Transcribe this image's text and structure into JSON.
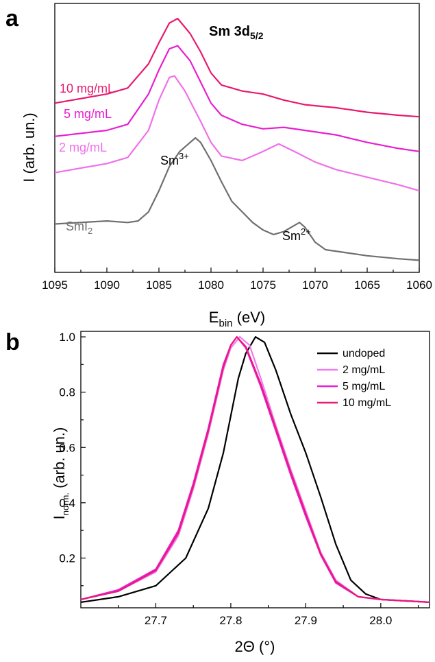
{
  "chart_data": [
    {
      "panel": "a",
      "type": "line",
      "title": "Sm 3d",
      "title_sub": "5/2",
      "xlabel_main": "E",
      "xlabel_sub": "bin",
      "xlabel_unit": " (eV)",
      "ylabel": "I (arb. un.)",
      "xlim": [
        1095,
        1060
      ],
      "x_reversed": true,
      "xticks": [
        "1095",
        "1090",
        "1085",
        "1080",
        "1075",
        "1070",
        "1065",
        "1060"
      ],
      "yticks_labeled": false,
      "series": [
        {
          "name": "10 mg/mL",
          "color": "#e8196e",
          "x": [
            1095,
            1090,
            1088,
            1086,
            1085,
            1084,
            1083.2,
            1082,
            1081,
            1080,
            1079,
            1077,
            1075,
            1073,
            1071,
            1068,
            1065,
            1062,
            1060
          ],
          "y": [
            6.9,
            7.2,
            7.4,
            8.2,
            8.9,
            9.55,
            9.7,
            9.2,
            8.6,
            7.9,
            7.5,
            7.3,
            7.2,
            7.0,
            6.85,
            6.75,
            6.6,
            6.5,
            6.45
          ]
        },
        {
          "name": "5 mg/mL",
          "color": "#e81ed0",
          "x": [
            1095,
            1090,
            1088,
            1086,
            1085,
            1084,
            1083.2,
            1082,
            1081,
            1080,
            1079,
            1077,
            1075,
            1073,
            1071,
            1068,
            1065,
            1062,
            1060
          ],
          "y": [
            5.8,
            6.0,
            6.2,
            7.2,
            8.0,
            8.7,
            8.8,
            8.3,
            7.6,
            6.9,
            6.5,
            6.2,
            6.05,
            6.1,
            6.0,
            5.85,
            5.6,
            5.4,
            5.3
          ]
        },
        {
          "name": "2 mg/mL",
          "color": "#f070e8",
          "x": [
            1095,
            1090,
            1088,
            1086,
            1085,
            1084,
            1083.5,
            1082.5,
            1081,
            1080,
            1079,
            1077,
            1075,
            1073.5,
            1072,
            1070,
            1068,
            1065,
            1062,
            1060
          ],
          "y": [
            4.6,
            4.9,
            5.1,
            6.0,
            7.0,
            7.75,
            7.8,
            7.3,
            6.3,
            5.6,
            5.15,
            5.0,
            5.3,
            5.55,
            5.3,
            4.95,
            4.7,
            4.45,
            4.2,
            4.0
          ]
        },
        {
          "name": "SmI2",
          "color": "#6f6f6f",
          "x": [
            1095,
            1090,
            1088,
            1087,
            1086,
            1085,
            1084,
            1083,
            1082,
            1081.5,
            1081,
            1080,
            1079,
            1078,
            1077,
            1076,
            1075,
            1074,
            1073,
            1072,
            1071.5,
            1071,
            1070,
            1069,
            1067,
            1065,
            1062,
            1060
          ],
          "y": [
            2.9,
            3.0,
            2.95,
            3.0,
            3.3,
            4.0,
            4.8,
            5.3,
            5.6,
            5.75,
            5.6,
            5.0,
            4.3,
            3.65,
            3.3,
            2.95,
            2.7,
            2.55,
            2.65,
            2.85,
            2.95,
            2.8,
            2.3,
            2.05,
            1.95,
            1.85,
            1.75,
            1.7
          ]
        }
      ],
      "annotations": [
        {
          "main": "Sm",
          "sup": "3+"
        },
        {
          "main": "Sm",
          "sup": "2+"
        }
      ],
      "series_labels": [
        {
          "main": "10 mg/mL"
        },
        {
          "main": "5 mg/mL"
        },
        {
          "main": "2 mg/mL"
        },
        {
          "main": "SmI",
          "sub": "2"
        }
      ]
    },
    {
      "panel": "b",
      "type": "line",
      "xlabel": "2Θ (°)",
      "ylabel_main": "I",
      "ylabel_sub": "norm.",
      "ylabel_unit": " (arb. un.)",
      "xlim": [
        27.6,
        28.065
      ],
      "ylim": [
        0.02,
        1.02
      ],
      "xticks": [
        "27.7",
        "27.8",
        "27.9",
        "28.0"
      ],
      "yticks": [
        "0.2",
        "0.4",
        "0.6",
        "0.8",
        "1.0"
      ],
      "legend_position": "top-right",
      "series": [
        {
          "name": "undoped",
          "color": "#000000",
          "x": [
            27.6,
            27.65,
            27.7,
            27.74,
            27.77,
            27.79,
            27.81,
            27.82,
            27.833,
            27.845,
            27.86,
            27.88,
            27.9,
            27.92,
            27.94,
            27.96,
            27.98,
            28.0,
            28.065
          ],
          "y": [
            0.04,
            0.06,
            0.1,
            0.2,
            0.38,
            0.58,
            0.85,
            0.94,
            1.0,
            0.98,
            0.88,
            0.72,
            0.58,
            0.42,
            0.25,
            0.12,
            0.07,
            0.05,
            0.04
          ]
        },
        {
          "name": "2 mg/mL",
          "color": "#f07af0",
          "x": [
            27.6,
            27.65,
            27.7,
            27.73,
            27.75,
            27.77,
            27.79,
            27.8,
            27.812,
            27.825,
            27.84,
            27.86,
            27.88,
            27.9,
            27.92,
            27.94,
            27.97,
            28.0,
            28.065
          ],
          "y": [
            0.05,
            0.08,
            0.15,
            0.28,
            0.45,
            0.65,
            0.88,
            0.96,
            1.0,
            0.97,
            0.85,
            0.68,
            0.52,
            0.37,
            0.22,
            0.12,
            0.06,
            0.05,
            0.04
          ]
        },
        {
          "name": "5 mg/mL",
          "color": "#e81ed8",
          "x": [
            27.6,
            27.65,
            27.7,
            27.73,
            27.75,
            27.77,
            27.79,
            27.8,
            27.808,
            27.82,
            27.84,
            27.86,
            27.88,
            27.9,
            27.92,
            27.94,
            27.97,
            28.0,
            28.065
          ],
          "y": [
            0.05,
            0.085,
            0.16,
            0.3,
            0.47,
            0.67,
            0.9,
            0.97,
            1.0,
            0.96,
            0.82,
            0.66,
            0.5,
            0.35,
            0.21,
            0.11,
            0.06,
            0.05,
            0.04
          ]
        },
        {
          "name": "10 mg/mL",
          "color": "#e8197a",
          "x": [
            27.6,
            27.65,
            27.7,
            27.73,
            27.75,
            27.77,
            27.79,
            27.8,
            27.808,
            27.82,
            27.84,
            27.86,
            27.88,
            27.9,
            27.92,
            27.94,
            27.97,
            28.0,
            28.065
          ],
          "y": [
            0.05,
            0.08,
            0.155,
            0.29,
            0.46,
            0.66,
            0.89,
            0.97,
            1.0,
            0.965,
            0.83,
            0.67,
            0.51,
            0.36,
            0.215,
            0.115,
            0.06,
            0.05,
            0.04
          ]
        }
      ]
    }
  ],
  "panel_labels": [
    "a",
    "b"
  ]
}
